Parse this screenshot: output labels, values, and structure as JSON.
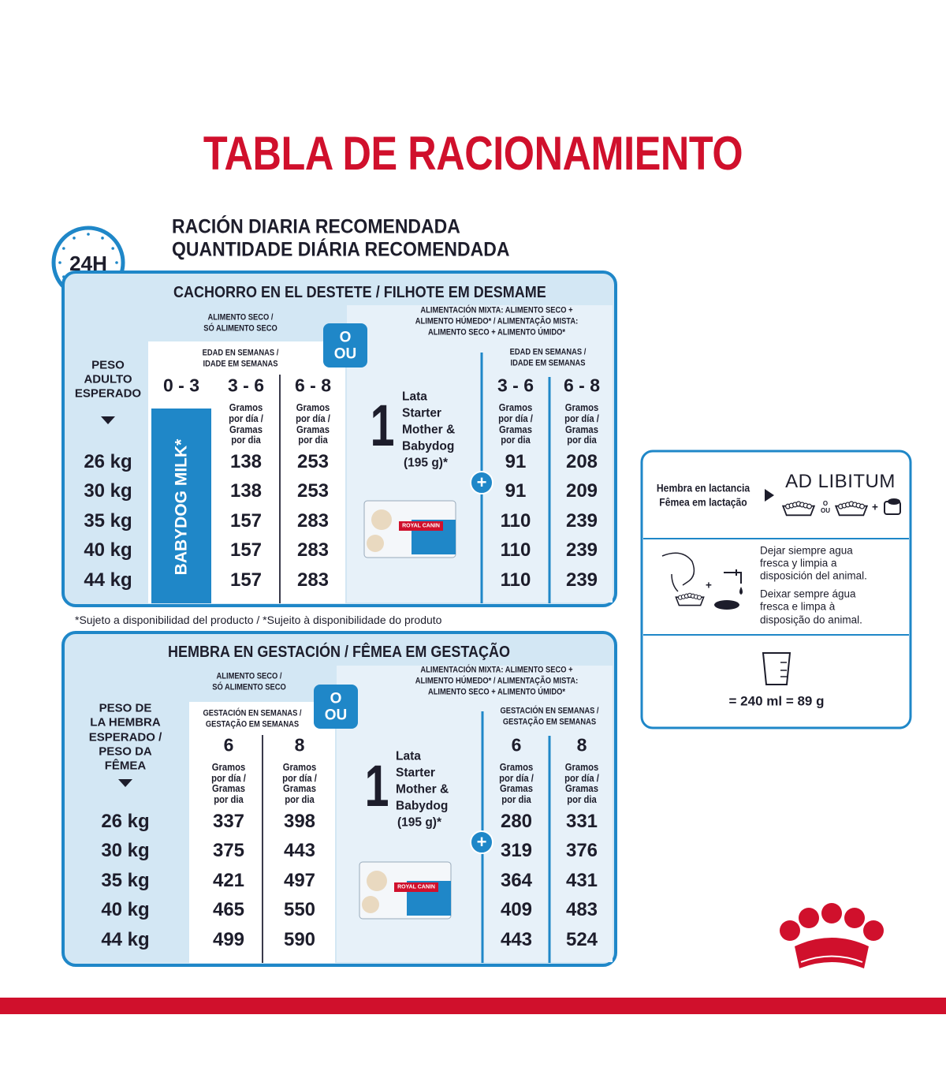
{
  "title": "TABLA DE RACIONAMIENTO",
  "clock_label": "24H",
  "subtitle": [
    "RACIÓN DIARIA RECOMENDADA",
    "QUANTIDADE DIÁRIA RECOMENDADA"
  ],
  "plus": "+",
  "tables": [
    {
      "heading": "CACHORRO EN EL DESTETE / FILHOTE EM DESMAME",
      "dry_label": [
        "ALIMENTO SECO /",
        "SÓ ALIMENTO SECO"
      ],
      "or_label": [
        "O",
        "OU"
      ],
      "mixed_label": [
        "ALIMENTACIÓN MIXTA: ALIMENTO SECO +",
        "ALIMENTO HÚMEDO* / ALIMENTAÇÃO MISTA:",
        "ALIMENTO SECO + ALIMENTO ÚMIDO*"
      ],
      "weight_header": [
        "PESO",
        "ADULTO",
        "ESPERADO"
      ],
      "dry_period_header": [
        "EDAD EN SEMANAS /",
        "IDADE EM SEMANAS"
      ],
      "dry_columns": [
        "0 - 3",
        "3 - 6",
        "6 - 8"
      ],
      "unit_label": [
        "Gramos",
        "por día /",
        "Gramas",
        "por dia"
      ],
      "milk_label": "BABYDOG MILK*",
      "can": {
        "count": "1",
        "name": [
          "Lata",
          "Starter",
          "Mother &",
          "Babydog"
        ],
        "weight": "(195 g)*",
        "brand": "ROYAL CANIN"
      },
      "mixed_period_header": [
        "EDAD EN SEMANAS /",
        "IDADE EM SEMANAS"
      ],
      "mixed_columns": [
        "3 - 6",
        "6 - 8"
      ],
      "rows": [
        {
          "weight": "26 kg",
          "dry": [
            138,
            253
          ],
          "mixed": [
            91,
            208
          ]
        },
        {
          "weight": "30 kg",
          "dry": [
            138,
            253
          ],
          "mixed": [
            91,
            209
          ]
        },
        {
          "weight": "35 kg",
          "dry": [
            157,
            283
          ],
          "mixed": [
            110,
            239
          ]
        },
        {
          "weight": "40 kg",
          "dry": [
            157,
            283
          ],
          "mixed": [
            110,
            239
          ]
        },
        {
          "weight": "44 kg",
          "dry": [
            157,
            283
          ],
          "mixed": [
            110,
            239
          ]
        }
      ]
    },
    {
      "heading": "HEMBRA EN GESTACIÓN / FÊMEA EM GESTAÇÃO",
      "dry_label": [
        "ALIMENTO SECO /",
        "SÓ ALIMENTO SECO"
      ],
      "or_label": [
        "O",
        "OU"
      ],
      "mixed_label": [
        "ALIMENTACIÓN MIXTA: ALIMENTO SECO +",
        "ALIMENTO HÚMEDO* / ALIMENTAÇÃO MISTA:",
        "ALIMENTO SECO + ALIMENTO ÚMIDO*"
      ],
      "weight_header": [
        "PESO DE",
        "LA HEMBRA",
        "ESPERADO /",
        "PESO DA",
        "FÊMEA"
      ],
      "dry_period_header": [
        "GESTACIÓN EN SEMANAS /",
        "GESTAÇÃO EM SEMANAS"
      ],
      "dry_columns": [
        "6",
        "8"
      ],
      "unit_label": [
        "Gramos",
        "por día /",
        "Gramas",
        "por dia"
      ],
      "can": {
        "count": "1",
        "name": [
          "Lata",
          "Starter",
          "Mother &",
          "Babydog"
        ],
        "weight": "(195 g)*",
        "brand": "ROYAL CANIN"
      },
      "mixed_period_header": [
        "GESTACIÓN EN SEMANAS /",
        "GESTAÇÃO EM SEMANAS"
      ],
      "mixed_columns": [
        "6",
        "8"
      ],
      "rows": [
        {
          "weight": "26 kg",
          "dry": [
            337,
            398
          ],
          "mixed": [
            280,
            331
          ]
        },
        {
          "weight": "30 kg",
          "dry": [
            375,
            443
          ],
          "mixed": [
            319,
            376
          ]
        },
        {
          "weight": "35 kg",
          "dry": [
            421,
            497
          ],
          "mixed": [
            364,
            431
          ]
        },
        {
          "weight": "40 kg",
          "dry": [
            465,
            550
          ],
          "mixed": [
            409,
            483
          ]
        },
        {
          "weight": "44 kg",
          "dry": [
            499,
            590
          ],
          "mixed": [
            443,
            524
          ]
        }
      ]
    }
  ],
  "footnote": "*Sujeto a disponibilidad del producto / *Sujeito à disponibilidade do produto",
  "side_panel": {
    "lactation_label": [
      "Hembra en lactancia",
      "Fêmea em lactação"
    ],
    "lactation_value": "AD LIBITUM",
    "or_label": [
      "O",
      "OU"
    ],
    "water_es": [
      "Dejar siempre agua",
      "fresca y limpia a",
      "disposición del animal."
    ],
    "water_pt": [
      "Deixar sempre água",
      "fresca e limpa à",
      "disposição do animal."
    ],
    "measure": "= 240 ml = 89 g"
  }
}
